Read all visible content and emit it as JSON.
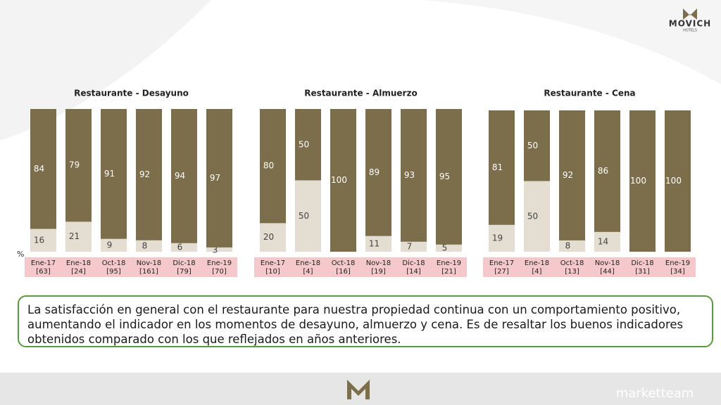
{
  "chart_data": [
    {
      "type": "stacked_bar",
      "title": "Restaurante - Desayuno",
      "unit_label": "%",
      "categories": [
        "Ene-17",
        "Ene-18",
        "Oct-18",
        "Nov-18",
        "Dic-18",
        "Ene-19"
      ],
      "sample_sizes": [
        "[63]",
        "[24]",
        "[95]",
        "[161]",
        "[79]",
        "[70]"
      ],
      "series": [
        {
          "color": "#e3ddd2",
          "values": [
            16,
            21,
            9,
            8,
            6,
            3
          ]
        },
        {
          "color": "#7d6e4b",
          "values": [
            84,
            79,
            91,
            92,
            94,
            97
          ]
        }
      ],
      "ylim": [
        0,
        100
      ]
    },
    {
      "type": "stacked_bar",
      "title": "Restaurante - Almuerzo",
      "categories": [
        "Ene-17",
        "Ene-18",
        "Oct-18",
        "Nov-18",
        "Dic-18",
        "Ene-19"
      ],
      "sample_sizes": [
        "[10]",
        "[4]",
        "[16]",
        "[19]",
        "[14]",
        "[21]"
      ],
      "series": [
        {
          "color": "#e3ddd2",
          "values": [
            20,
            50,
            null,
            11,
            7,
            5
          ]
        },
        {
          "color": "#7d6e4b",
          "values": [
            80,
            50,
            100,
            89,
            93,
            95
          ]
        }
      ],
      "ylim": [
        0,
        100
      ]
    },
    {
      "type": "stacked_bar",
      "title": "Restaurante - Cena",
      "categories": [
        "Ene-17",
        "Ene-18",
        "Oct-18",
        "Nov-18",
        "Dic-18",
        "Ene-19"
      ],
      "sample_sizes": [
        "[27]",
        "[4]",
        "[13]",
        "[44]",
        "[31]",
        "[34]"
      ],
      "series": [
        {
          "color": "#e3ddd2",
          "values": [
            19,
            50,
            8,
            14,
            null,
            null
          ]
        },
        {
          "color": "#7d6e4b",
          "values": [
            81,
            50,
            92,
            86,
            100,
            100
          ]
        }
      ],
      "ylim": [
        0,
        100
      ]
    }
  ],
  "summary": "La satisfacción en general con el restaurante para nuestra propiedad continua con un comportamiento positivo, aumentando el indicador en los momentos de desayuno, almuerzo y cena. Es de resaltar los buenos indicadores obtenidos comparado con los que reflejados en años anteriores.",
  "logo": {
    "brand": "MOVICH",
    "sub": "HOTELS"
  },
  "footer": {
    "brand": "marketteam"
  }
}
